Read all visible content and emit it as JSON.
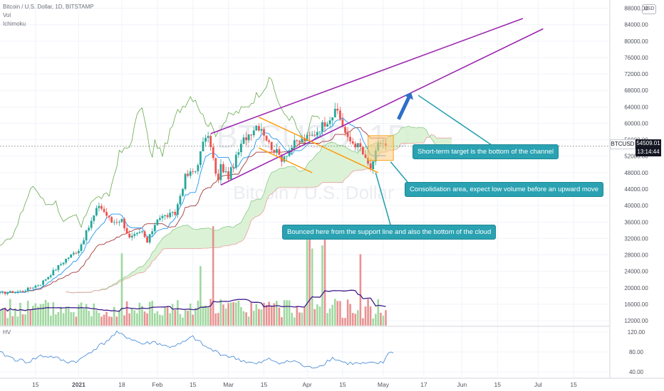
{
  "header": {
    "symbol_line": "Bitcoin / U.S. Dollar, 1D, BITSTAMP",
    "indicator_1": "Vol",
    "indicator_2": "Ichimoku",
    "currency_button": "USD"
  },
  "price_tag": {
    "symbol": "BTCUSD",
    "price": "54509.01",
    "countdown": "13:14:44",
    "color": "#000000"
  },
  "watermark": {
    "ticker": "BTCUSD, 1D",
    "name": "Bitcoin / U.S. Dollar"
  },
  "hv_label": "HV",
  "annotations": [
    {
      "text": "Short-term target is the bottom of the channel"
    },
    {
      "text": "Consolidation area, expect low volume before an upward move"
    },
    {
      "text": "Bounced here from the support line and also the bottom of the cloud"
    }
  ],
  "colors": {
    "up_candle": "#26a69a",
    "down_candle": "#ef5350",
    "channel": "#9c27b0",
    "wedge": "#ff9800",
    "callout": "#2aa2b2",
    "arrow": "#2e6fc7",
    "kumo_fill": "#d6f0cf",
    "volume_up": "#8fd18f",
    "volume_down": "#e57f7f",
    "volume_ma": "#3f1c8a",
    "hv_line": "#4f8fd6"
  },
  "chart_data": [
    {
      "type": "candlestick",
      "title": "Bitcoin / U.S. Dollar, 1D, BITSTAMP",
      "y_axis": {
        "ticks": [
          12000,
          16000,
          20000,
          24000,
          28000,
          32000,
          36000,
          40000,
          44000,
          48000,
          52000,
          56000,
          60000,
          64000,
          68000,
          72000,
          76000,
          80000,
          84000,
          88000
        ],
        "tick_labels": [
          "12000.00",
          "16000.00",
          "20000.00",
          "24000.00",
          "28000.00",
          "32000.00",
          "36000.00",
          "40000.00",
          "44000.00",
          "48000.00",
          "52000.00",
          "56000.00",
          "60000.00",
          "64000.00",
          "68000.00",
          "72000.00",
          "76000.00",
          "80000.00",
          "84000.00",
          "88000.00"
        ],
        "range": [
          10800,
          90000
        ]
      },
      "x_axis": {
        "tick_labels": [
          "15",
          "2021",
          "18",
          "Feb",
          "15",
          "Mar",
          "15",
          "Apr",
          "15",
          "May",
          "17",
          "Jun",
          "15",
          "Jul",
          "15"
        ],
        "tick_days": [
          -17,
          0,
          17,
          31,
          45,
          59,
          73,
          90,
          104,
          120,
          136,
          151,
          165,
          181,
          195
        ],
        "day_zero": "2021-01-01",
        "range_days": [
          -31,
          209
        ]
      },
      "candle_anchors": {
        "days": [
          -31,
          -22,
          -15,
          -5,
          0,
          8,
          13,
          17,
          20,
          25,
          27,
          31,
          38,
          42,
          46,
          50,
          52,
          54,
          55,
          56,
          59,
          65,
          70,
          72,
          75,
          80,
          85,
          92,
          99,
          102,
          106,
          109,
          111,
          113,
          115,
          116,
          118,
          121
        ],
        "close": [
          18700,
          19200,
          21000,
          27000,
          29300,
          40200,
          36000,
          36500,
          32000,
          33500,
          31000,
          37000,
          38000,
          47000,
          48500,
          57000,
          55000,
          47500,
          46000,
          49500,
          47000,
          56000,
          59500,
          59000,
          55000,
          51500,
          55000,
          57000,
          61500,
          63000,
          56000,
          55000,
          54000,
          51000,
          49000,
          50000,
          55500,
          54509
        ]
      },
      "volume_chart": {
        "label": "Vol",
        "ma_color": "#3f1c8a"
      },
      "drawings": {
        "upper_channel_line": {
          "from": [
            52,
            57500
          ],
          "to": [
            175,
            85500
          ]
        },
        "lower_channel_line": {
          "from": [
            56,
            45000
          ],
          "to": [
            183,
            83000
          ]
        },
        "wedge_upper": {
          "from": [
            71,
            61500
          ],
          "to": [
            118,
            48000
          ]
        },
        "wedge_lower": {
          "from": [
            71,
            54000
          ],
          "to": [
            92,
            48000
          ]
        },
        "consolidation_zone": {
          "days": [
            114,
            124
          ],
          "price": [
            51000,
            57000
          ]
        },
        "target_arrow": {
          "from": [
            126,
            61000
          ],
          "to": [
            131,
            67500
          ]
        }
      }
    },
    {
      "type": "line",
      "title": "HV",
      "y_axis": {
        "ticks": [
          40,
          80,
          120
        ],
        "tick_labels": [
          "40.00",
          "80.00",
          "120.00"
        ],
        "range": [
          30,
          130
        ]
      },
      "x_days": [
        -31,
        -25,
        -20,
        -15,
        -10,
        -5,
        0,
        5,
        10,
        15,
        20,
        25,
        30,
        35,
        40,
        45,
        50,
        55,
        60,
        65,
        70,
        75,
        80,
        85,
        90,
        95,
        100,
        105,
        110,
        115,
        120,
        122,
        124
      ],
      "values": [
        78,
        65,
        60,
        72,
        70,
        60,
        62,
        82,
        98,
        118,
        108,
        96,
        100,
        90,
        95,
        110,
        90,
        78,
        70,
        62,
        55,
        65,
        58,
        62,
        48,
        52,
        68,
        58,
        56,
        56,
        58,
        80,
        78
      ]
    }
  ]
}
